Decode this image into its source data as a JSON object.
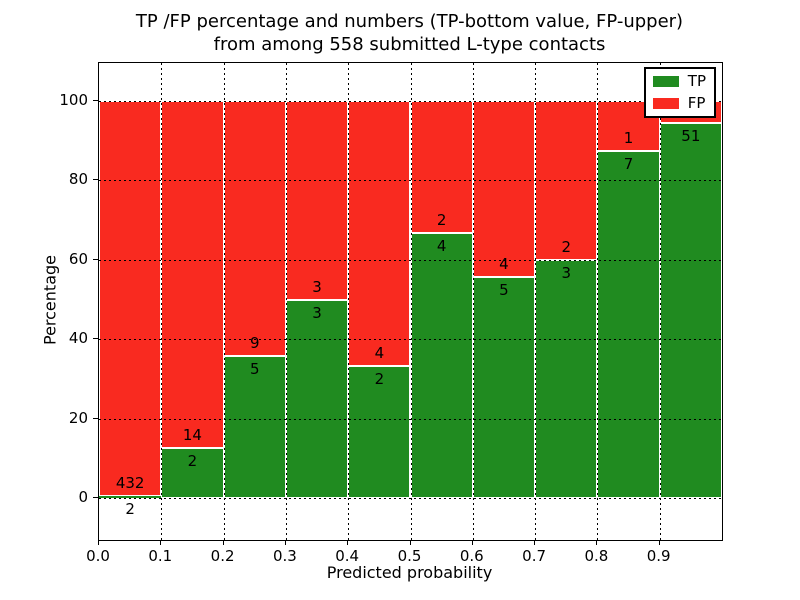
{
  "title": {
    "line1": "TP /FP percentage and numbers (TP-bottom value, FP-upper)",
    "line2": "from among 558 submitted L-type contacts"
  },
  "axes": {
    "xlabel": "Predicted probability",
    "ylabel": "Percentage",
    "x_tick_labels": [
      "0.0",
      "0.1",
      "0.2",
      "0.3",
      "0.4",
      "0.5",
      "0.6",
      "0.7",
      "0.8",
      "0.9"
    ],
    "x_tick_values": [
      0.0,
      0.1,
      0.2,
      0.3,
      0.4,
      0.5,
      0.6,
      0.7,
      0.8,
      0.9
    ],
    "y_tick_labels": [
      "0",
      "20",
      "40",
      "60",
      "80",
      "100"
    ],
    "y_tick_values": [
      0,
      20,
      40,
      60,
      80,
      100
    ]
  },
  "legend": {
    "items": [
      {
        "label": "TP",
        "color": "#208b20"
      },
      {
        "label": "FP",
        "color": "#f92a20"
      }
    ]
  },
  "colors": {
    "tp": "#208b20",
    "fp": "#f92a20",
    "grid": "#000000",
    "frame": "#000000",
    "background": "#ffffff"
  },
  "chart_data": {
    "type": "bar",
    "stacked": true,
    "normalized_to_percent": true,
    "title": "TP /FP percentage and numbers (TP-bottom value, FP-upper) from among 558 submitted L-type contacts",
    "xlabel": "Predicted probability",
    "ylabel": "Percentage",
    "xlim": [
      0.0,
      1.0
    ],
    "ylim": [
      -10.6,
      109.6
    ],
    "grid": "dotted, both axes, drawn over bars",
    "legend_position": "upper right",
    "total_submitted_contacts": 558,
    "bin_edges": [
      0.0,
      0.1,
      0.2,
      0.3,
      0.4,
      0.5,
      0.6,
      0.7,
      0.8,
      0.9,
      1.0
    ],
    "series": [
      {
        "name": "TP",
        "counts": [
          2,
          2,
          5,
          3,
          2,
          4,
          5,
          3,
          7,
          51
        ],
        "pct": [
          0.46,
          12.5,
          35.71,
          50.0,
          33.33,
          66.67,
          55.56,
          60.0,
          87.5,
          94.44
        ]
      },
      {
        "name": "FP",
        "counts": [
          432,
          14,
          9,
          3,
          4,
          2,
          4,
          2,
          1,
          null
        ],
        "pct": [
          99.54,
          87.5,
          64.29,
          50.0,
          66.67,
          33.33,
          44.44,
          40.0,
          12.5,
          5.56
        ]
      }
    ],
    "bins": [
      {
        "x0": 0.0,
        "x1": 0.1,
        "tp": 2,
        "fp": 432,
        "tp_pct": 0.46
      },
      {
        "x0": 0.1,
        "x1": 0.2,
        "tp": 2,
        "fp": 14,
        "tp_pct": 12.5
      },
      {
        "x0": 0.2,
        "x1": 0.3,
        "tp": 5,
        "fp": 9,
        "tp_pct": 35.71
      },
      {
        "x0": 0.3,
        "x1": 0.4,
        "tp": 3,
        "fp": 3,
        "tp_pct": 50.0
      },
      {
        "x0": 0.4,
        "x1": 0.5,
        "tp": 2,
        "fp": 4,
        "tp_pct": 33.33
      },
      {
        "x0": 0.5,
        "x1": 0.6,
        "tp": 4,
        "fp": 2,
        "tp_pct": 66.67
      },
      {
        "x0": 0.6,
        "x1": 0.7,
        "tp": 5,
        "fp": 4,
        "tp_pct": 55.56
      },
      {
        "x0": 0.7,
        "x1": 0.8,
        "tp": 3,
        "fp": 2,
        "tp_pct": 60.0
      },
      {
        "x0": 0.8,
        "x1": 0.9,
        "tp": 7,
        "fp": 1,
        "tp_pct": 87.5
      },
      {
        "x0": 0.9,
        "x1": 1.0,
        "tp": 51,
        "fp": null,
        "tp_pct": 94.44
      }
    ],
    "label_note_visible_in_title": "TP-bottom value, FP-upper"
  }
}
